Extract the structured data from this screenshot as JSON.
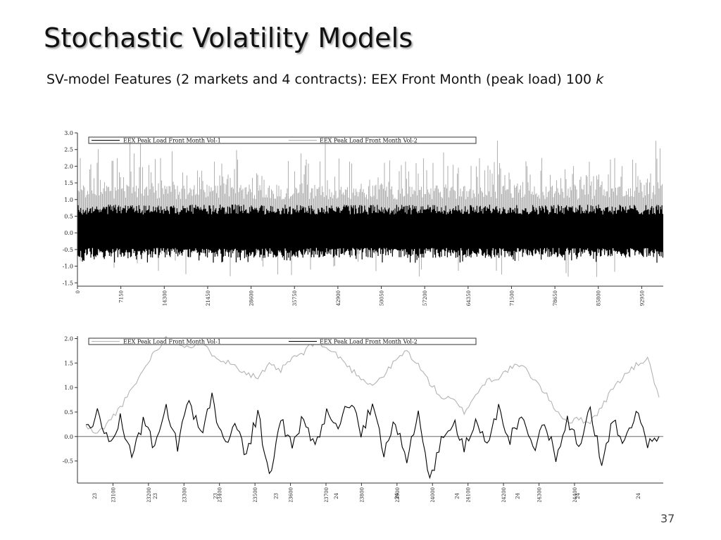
{
  "slide": {
    "title": "Stochastic Volatility Models",
    "subtitle_main": "SV-model Features (2 markets and 4 contracts): EEX Front Month (peak load) 100",
    "subtitle_var": "k",
    "page_number": "37"
  },
  "colors": {
    "series1": "#000000",
    "series2": "#b3b3b3",
    "axis": "#333333"
  },
  "chart_data": [
    {
      "type": "line",
      "title": "",
      "xlabel": "",
      "ylabel": "",
      "ylim": [
        -1.6,
        3.0
      ],
      "yticks": [
        "3.0",
        "2.5",
        "2.0",
        "1.5",
        "1.0",
        "0.5",
        "0.0",
        "-0.5",
        "-1.0",
        "-1.5"
      ],
      "yticks_num": [
        3.0,
        2.5,
        2.0,
        1.5,
        1.0,
        0.5,
        0.0,
        -0.5,
        -1.0,
        -1.5
      ],
      "xticks": [
        "0",
        "7150",
        "14300",
        "21450",
        "28600",
        "35750",
        "42900",
        "50050",
        "57200",
        "64350",
        "71500",
        "78650",
        "85800",
        "92950"
      ],
      "xlim": [
        0,
        96500
      ],
      "legend": "top",
      "grid": false,
      "series": [
        {
          "name": "EEX Peak Load Front Month Vol-1",
          "description": "dense noise band centred near 0, range approx -0.75 to 0.85"
        },
        {
          "name": "EEX Peak Load Front Month Vol-2",
          "description": "dense noise band, baseline approx -0.3 to 1.3, spikes up to approx 2.8, dips to approx -1.6"
        }
      ],
      "zero_line": 0.0
    },
    {
      "type": "line",
      "title": "",
      "xlabel": "",
      "ylabel": "",
      "ylim": [
        -0.95,
        2.05
      ],
      "yticks": [
        "2.0",
        "1.5",
        "1.0",
        "0.5",
        "0.0",
        "-0.5"
      ],
      "yticks_num": [
        2.0,
        1.5,
        1.0,
        0.5,
        0.0,
        -0.5
      ],
      "xticks": [
        "23100",
        "23200",
        "23300",
        "23400",
        "23500",
        "23600",
        "23700",
        "23800",
        "23900",
        "24000",
        "24100",
        "24200",
        "24300",
        "24400"
      ],
      "xticks_sub": [
        "23",
        "23",
        "23",
        "23",
        "24",
        "24",
        "24",
        "24",
        "24",
        "24"
      ],
      "xlim": [
        23000,
        24650
      ],
      "legend": "top",
      "grid": false,
      "zero_line": 0.0,
      "series": [
        {
          "name": "EEX Peak Load Front Month Vol-1",
          "x": [
            0,
            2,
            4,
            6,
            8,
            10,
            12,
            14,
            16,
            18,
            20,
            22,
            24,
            26,
            28,
            30,
            32,
            34,
            36,
            38,
            40,
            42,
            44,
            46,
            48,
            50,
            52,
            54,
            56,
            58,
            60,
            62,
            64,
            66,
            68,
            70,
            72,
            74,
            76,
            78,
            80,
            82,
            84,
            86,
            88,
            90,
            92,
            94,
            96,
            98,
            100
          ],
          "values": [
            0.15,
            0.45,
            -0.1,
            0.35,
            -0.4,
            0.3,
            -0.25,
            0.55,
            -0.2,
            0.7,
            0.05,
            0.8,
            -0.15,
            0.25,
            -0.35,
            0.5,
            -0.85,
            0.35,
            -0.2,
            0.4,
            -0.3,
            0.5,
            0.2,
            0.7,
            0.1,
            0.6,
            -0.3,
            0.35,
            -0.5,
            0.45,
            -0.9,
            -0.1,
            0.3,
            -0.2,
            0.25,
            -0.15,
            0.55,
            -0.05,
            0.45,
            -0.3,
            0.35,
            -0.4,
            0.4,
            -0.25,
            0.55,
            -0.55,
            0.35,
            -0.15,
            0.5,
            -0.2,
            0.0
          ]
        },
        {
          "name": "EEX Peak Load Front Month Vol-2",
          "x": [
            0,
            2,
            4,
            6,
            8,
            10,
            12,
            14,
            16,
            18,
            20,
            22,
            24,
            26,
            28,
            30,
            32,
            34,
            36,
            38,
            40,
            42,
            44,
            46,
            48,
            50,
            52,
            54,
            56,
            58,
            60,
            62,
            64,
            66,
            68,
            70,
            72,
            74,
            76,
            78,
            80,
            82,
            84,
            86,
            88,
            90,
            92,
            94,
            96,
            98,
            100
          ],
          "values": [
            0.2,
            0.05,
            0.3,
            0.6,
            0.95,
            1.35,
            1.75,
            2.0,
            1.9,
            1.85,
            1.9,
            1.7,
            1.55,
            1.45,
            1.3,
            1.2,
            1.45,
            1.35,
            1.6,
            1.7,
            1.95,
            1.8,
            1.65,
            1.4,
            1.2,
            1.05,
            1.25,
            1.55,
            1.75,
            1.45,
            1.1,
            0.8,
            0.75,
            0.5,
            0.85,
            1.15,
            1.2,
            1.4,
            1.45,
            1.2,
            0.9,
            0.55,
            0.3,
            0.35,
            0.3,
            0.6,
            1.0,
            1.25,
            1.45,
            1.6,
            0.8
          ]
        }
      ]
    }
  ]
}
